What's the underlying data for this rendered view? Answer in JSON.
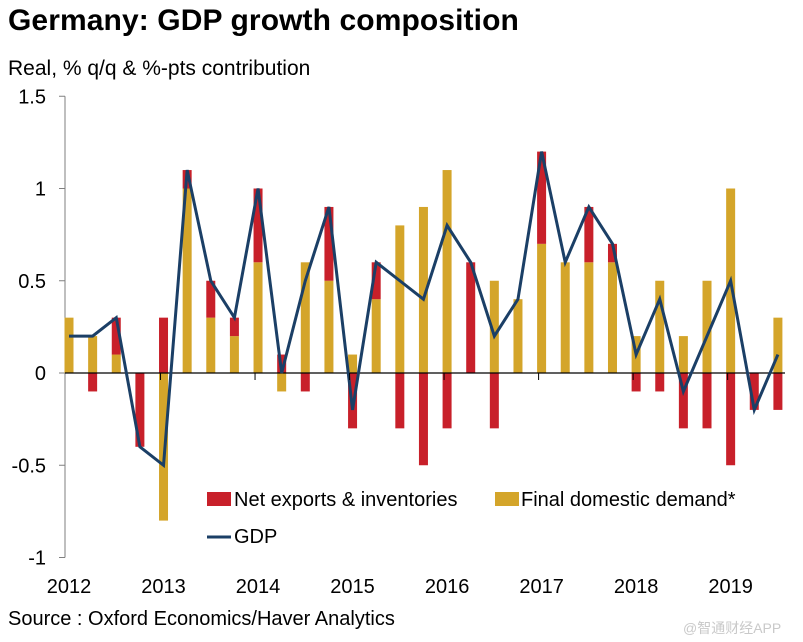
{
  "title": "Germany: GDP growth composition",
  "subtitle": "Real, % q/q & %-pts contribution",
  "source": "Source : Oxford Economics/Haver Analytics",
  "watermark": "@智通财经APP",
  "colors": {
    "net_exports": "#C8202A",
    "final_domestic_demand": "#D4A52A",
    "gdp": "#1B3F66"
  },
  "chart_data": {
    "type": "bar",
    "stacked": true,
    "title": "Germany: GDP growth composition",
    "subtitle": "Real, % q/q & %-pts contribution",
    "xlabel": "",
    "ylabel": "",
    "ylim": [
      -1,
      1.5
    ],
    "yticks": [
      1.5,
      1,
      0.5,
      0,
      -0.5,
      -1
    ],
    "ytick_labels": [
      "1.5",
      "1",
      "0.5",
      "0",
      "-0.5",
      "-1"
    ],
    "year_labels": [
      "2012",
      "2013",
      "2014",
      "2015",
      "2016",
      "2017",
      "2018",
      "2019"
    ],
    "categories": [
      "2012Q1",
      "2012Q2",
      "2012Q3",
      "2012Q4",
      "2013Q1",
      "2013Q2",
      "2013Q3",
      "2013Q4",
      "2014Q1",
      "2014Q2",
      "2014Q3",
      "2014Q4",
      "2015Q1",
      "2015Q2",
      "2015Q3",
      "2015Q4",
      "2016Q1",
      "2016Q2",
      "2016Q3",
      "2016Q4",
      "2017Q1",
      "2017Q2",
      "2017Q3",
      "2017Q4",
      "2018Q1",
      "2018Q2",
      "2018Q3",
      "2018Q4",
      "2019Q1",
      "2019Q2",
      "2019Q3"
    ],
    "series": [
      {
        "name": "Net exports & inventories",
        "type": "bar",
        "values": [
          0,
          -0.1,
          0.2,
          -0.4,
          0.3,
          0.1,
          0.2,
          0.1,
          0.4,
          0.1,
          -0.1,
          0.4,
          -0.3,
          0.2,
          -0.3,
          -0.5,
          -0.3,
          0.6,
          -0.3,
          0,
          0.5,
          0,
          0.3,
          0.1,
          -0.1,
          -0.1,
          -0.3,
          -0.3,
          -0.5,
          -0.2,
          -0.2
        ]
      },
      {
        "name": "Final domestic demand*",
        "type": "bar",
        "values": [
          0.3,
          0.2,
          0.1,
          0,
          -0.8,
          1.0,
          0.3,
          0.2,
          0.6,
          -0.1,
          0.6,
          0.5,
          0.1,
          0.4,
          0.8,
          0.9,
          1.1,
          0,
          0.5,
          0.4,
          0.7,
          0.6,
          0.6,
          0.6,
          0.2,
          0.5,
          0.2,
          0.5,
          1.0,
          0,
          0.3
        ]
      },
      {
        "name": "GDP",
        "type": "line",
        "values": [
          0.2,
          0.2,
          0.3,
          -0.4,
          -0.5,
          1.1,
          0.5,
          0.3,
          1.0,
          0.0,
          0.5,
          0.9,
          -0.2,
          0.6,
          0.5,
          0.4,
          0.8,
          0.6,
          0.2,
          0.4,
          1.2,
          0.6,
          0.9,
          0.7,
          0.1,
          0.4,
          -0.1,
          0.2,
          0.5,
          -0.2,
          0.1
        ]
      }
    ],
    "legend": {
      "placement": "bottom-center-inside",
      "entries": [
        "Net exports & inventories",
        "Final domestic demand*",
        "GDP"
      ]
    },
    "grid": false
  }
}
